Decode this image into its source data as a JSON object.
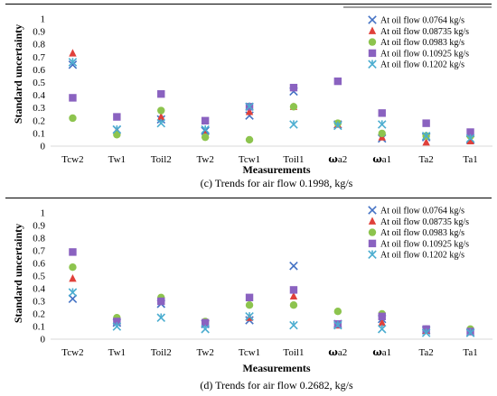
{
  "chart_data": [
    {
      "type": "scatter",
      "caption": "(c) Trends for air flow 0.1998, kg/s",
      "xlabel": "Measurements",
      "ylabel": "Standard uncertainty",
      "ylim": [
        0,
        1
      ],
      "yticks": [
        "0",
        "0.1",
        "0.2",
        "0.3",
        "0.4",
        "0.5",
        "0.6",
        "0.7",
        "0.8",
        "0.9",
        "1"
      ],
      "categories": [
        "Tcw2",
        "Tw1",
        "Toil2",
        "Tw2",
        "Tcw1",
        "Toil1",
        "ωa2",
        "ωa1",
        "Ta2",
        "Ta1"
      ],
      "legend_position": "top-right",
      "series": [
        {
          "name": "At oil flow 0.0764 kg/s",
          "marker": "x",
          "color": "#4472C4",
          "values": [
            0.64,
            0.13,
            0.21,
            0.12,
            0.24,
            0.43,
            0.17,
            0.06,
            0.07,
            0.05
          ]
        },
        {
          "name": "At oil flow 0.08735 kg/s",
          "marker": "triangle",
          "color": "#E0403A",
          "values": [
            0.73,
            0.12,
            0.23,
            0.09,
            0.27,
            0.31,
            0.17,
            0.07,
            0.03,
            0.04
          ]
        },
        {
          "name": "At oil flow 0.0983 kg/s",
          "marker": "circle",
          "color": "#8DC44E",
          "values": [
            0.22,
            0.09,
            0.28,
            0.07,
            0.05,
            0.31,
            0.18,
            0.1,
            0.08,
            0.08
          ]
        },
        {
          "name": "At oil flow 0.10925 kg/s",
          "marker": "square",
          "color": "#8A62C0",
          "values": [
            0.38,
            0.23,
            0.41,
            0.2,
            0.31,
            0.46,
            0.51,
            0.26,
            0.18,
            0.11
          ]
        },
        {
          "name": "At oil flow 0.1202 kg/s",
          "marker": "star",
          "color": "#4BADD0",
          "values": [
            0.66,
            0.13,
            0.18,
            0.13,
            0.31,
            0.17,
            0.16,
            0.17,
            0.08,
            0.06
          ]
        }
      ]
    },
    {
      "type": "scatter",
      "caption": "(d) Trends for air flow 0.2682, kg/s",
      "xlabel": "Measurements",
      "ylabel": "Standard uncertainty",
      "ylim": [
        0,
        1
      ],
      "yticks": [
        "0",
        "0.1",
        "0.2",
        "0.3",
        "0.4",
        "0.5",
        "0.6",
        "0.7",
        "0.8",
        "0.9",
        "1"
      ],
      "categories": [
        "Tcw2",
        "Tw1",
        "Toil2",
        "Tw2",
        "Tcw1",
        "Toil1",
        "ωa2",
        "ωa1",
        "Ta2",
        "Ta1"
      ],
      "legend_position": "top-right",
      "series": [
        {
          "name": "At oil flow 0.0764 kg/s",
          "marker": "x",
          "color": "#4472C4",
          "values": [
            0.32,
            0.13,
            0.28,
            0.12,
            0.15,
            0.58,
            0.12,
            0.16,
            0.07,
            0.05
          ]
        },
        {
          "name": "At oil flow 0.08735 kg/s",
          "marker": "triangle",
          "color": "#E0403A",
          "values": [
            0.48,
            0.15,
            0.3,
            0.13,
            0.17,
            0.34,
            0.11,
            0.13,
            0.07,
            0.06
          ]
        },
        {
          "name": "At oil flow 0.0983 kg/s",
          "marker": "circle",
          "color": "#8DC44E",
          "values": [
            0.57,
            0.17,
            0.33,
            0.14,
            0.27,
            0.27,
            0.22,
            0.2,
            0.08,
            0.08
          ]
        },
        {
          "name": "At oil flow 0.10925 kg/s",
          "marker": "square",
          "color": "#8A62C0",
          "values": [
            0.69,
            0.14,
            0.3,
            0.13,
            0.33,
            0.39,
            0.12,
            0.18,
            0.08,
            0.06
          ]
        },
        {
          "name": "At oil flow 0.1202 kg/s",
          "marker": "star",
          "color": "#4BADD0",
          "values": [
            0.37,
            0.1,
            0.17,
            0.08,
            0.18,
            0.11,
            0.11,
            0.08,
            0.05,
            0.05
          ]
        }
      ]
    }
  ]
}
